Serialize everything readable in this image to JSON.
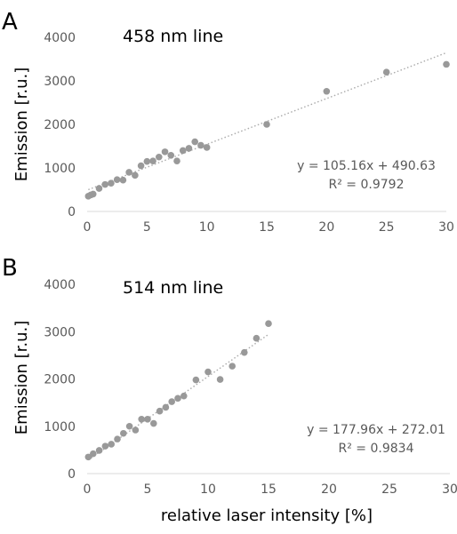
{
  "shared": {
    "xlabel": "relative laser intensity [%]",
    "ylabel": "Emission [r.u.]"
  },
  "chart_data": [
    {
      "type": "scatter",
      "panel_label": "A",
      "title": "458 nm line",
      "xlabel": "",
      "ylabel": "Emission [r.u.]",
      "xlim": [
        0,
        30
      ],
      "ylim": [
        0,
        4000
      ],
      "x_ticks": [
        0,
        5,
        10,
        15,
        20,
        25,
        30
      ],
      "y_ticks": [
        0,
        1000,
        2000,
        3000,
        4000
      ],
      "grid": false,
      "marker_color": "#999999",
      "trendline": {
        "slope": 105.16,
        "intercept": 490.63,
        "style": "dotted",
        "color": "#aaaaaa"
      },
      "annotation": [
        "y = 105.16x + 490.63",
        "R² = 0.9792"
      ],
      "points": {
        "x": [
          0.1,
          0.3,
          0.5,
          1.0,
          1.5,
          2.0,
          2.5,
          3.0,
          3.5,
          4.0,
          4.5,
          5.0,
          5.5,
          6.0,
          6.5,
          7.0,
          7.5,
          8.0,
          8.5,
          9.0,
          9.5,
          10.0,
          15,
          20,
          25,
          30
        ],
        "y": [
          350,
          380,
          400,
          530,
          620,
          650,
          730,
          720,
          900,
          830,
          1050,
          1150,
          1160,
          1250,
          1370,
          1290,
          1160,
          1400,
          1450,
          1600,
          1520,
          1470,
          2000,
          2760,
          3200,
          3380
        ]
      }
    },
    {
      "type": "scatter",
      "panel_label": "B",
      "title": "514 nm line",
      "xlabel": "relative laser intensity [%]",
      "ylabel": "Emission [r.u.]",
      "xlim": [
        0,
        30
      ],
      "ylim": [
        0,
        4000
      ],
      "x_ticks": [
        0,
        5,
        10,
        15,
        20,
        25,
        30
      ],
      "y_ticks": [
        0,
        1000,
        2000,
        3000,
        4000
      ],
      "grid": false,
      "marker_color": "#999999",
      "trendline": {
        "slope": 177.96,
        "intercept": 272.01,
        "style": "dotted",
        "color": "#aaaaaa"
      },
      "annotation": [
        "y = 177.96x + 272.01",
        "R² = 0.9834"
      ],
      "points": {
        "x": [
          0.1,
          0.5,
          1.0,
          1.5,
          2.0,
          2.5,
          3.0,
          3.5,
          4.0,
          4.5,
          5.0,
          5.5,
          6.0,
          6.5,
          7.0,
          7.5,
          8.0,
          9.0,
          10.0,
          11.0,
          12.0,
          13.0,
          14.0,
          15.0
        ],
        "y": [
          350,
          420,
          490,
          580,
          620,
          730,
          850,
          1000,
          920,
          1150,
          1150,
          1060,
          1320,
          1400,
          1520,
          1590,
          1640,
          1980,
          2150,
          1990,
          2270,
          2560,
          2860,
          3170
        ]
      }
    }
  ]
}
